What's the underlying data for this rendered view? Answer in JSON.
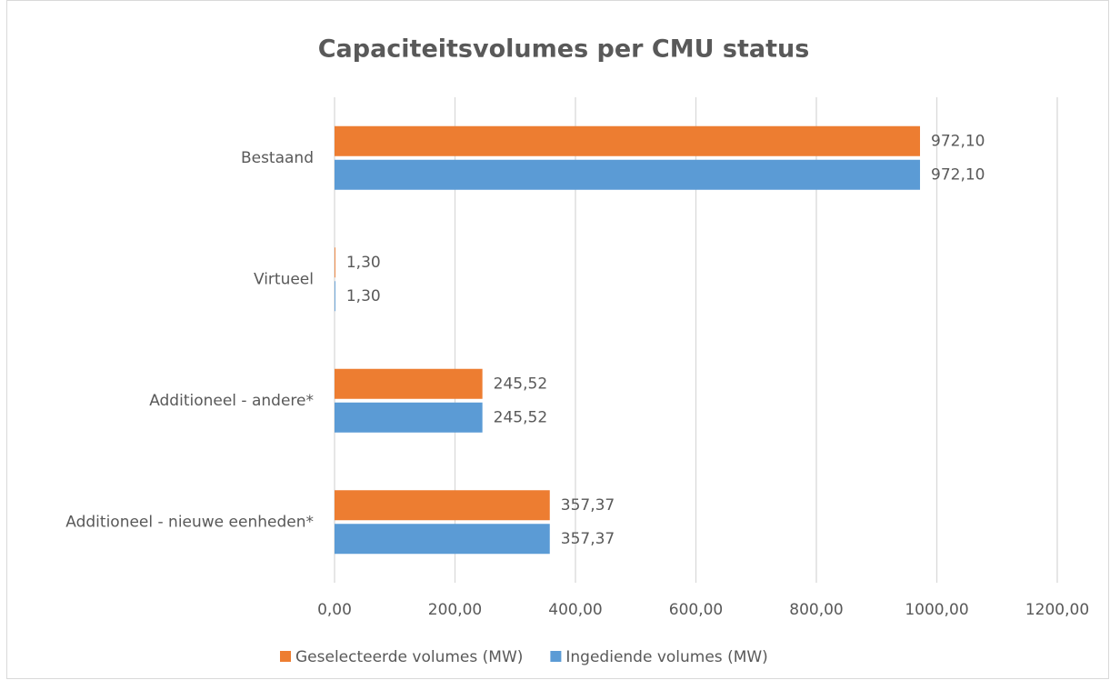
{
  "chart_data": {
    "type": "barh",
    "title": "Capaciteitsvolumes per CMU status",
    "categories": [
      "Bestaand",
      "Virtueel",
      "Additioneel - andere*",
      "Additioneel - nieuwe eenheden*"
    ],
    "series": [
      {
        "name": "Geselecteerde volumes (MW)",
        "color": "#ed7d31",
        "values": [
          972.1,
          1.3,
          245.52,
          357.37
        ],
        "value_labels": [
          "972,10",
          "1,30",
          "245,52",
          "357,37"
        ]
      },
      {
        "name": "Ingediende volumes (MW)",
        "color": "#5b9bd5",
        "values": [
          972.1,
          1.3,
          245.52,
          357.37
        ],
        "value_labels": [
          "972,10",
          "1,30",
          "245,52",
          "357,37"
        ]
      }
    ],
    "xlim": [
      0,
      1200
    ],
    "xticks": [
      {
        "value": 0,
        "label": "0,00"
      },
      {
        "value": 200,
        "label": "200,00"
      },
      {
        "value": 400,
        "label": "400,00"
      },
      {
        "value": 600,
        "label": "600,00"
      },
      {
        "value": 800,
        "label": "800,00"
      },
      {
        "value": 1000,
        "label": "1000,00"
      },
      {
        "value": 1200,
        "label": "1200,00"
      }
    ],
    "grid": true,
    "legend": "bottom"
  }
}
